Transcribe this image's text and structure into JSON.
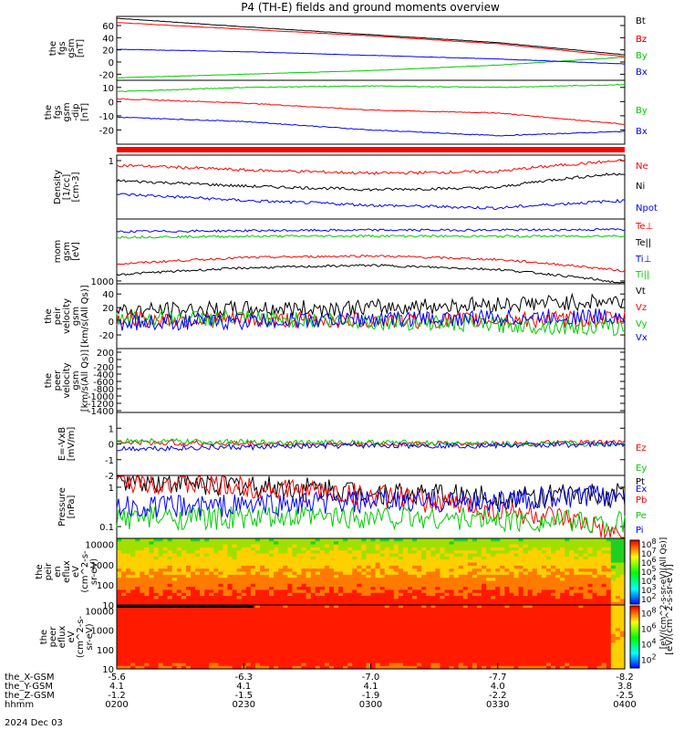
{
  "title": "P4 (TH-E) fields and ground moments overview",
  "chart_data": [
    {
      "type": "line",
      "panel": "fgs_gsm",
      "ylabel": [
        "the",
        "fgs",
        "gsm",
        "[nT]"
      ],
      "ylim": [
        -30,
        75
      ],
      "yticks": [
        -20,
        0,
        20,
        40,
        60
      ],
      "x_hours": [
        0,
        0.5,
        1,
        1.5,
        2
      ],
      "series": [
        {
          "name": "Bt",
          "color": "#000000",
          "values": [
            72,
            58,
            45,
            32,
            12
          ]
        },
        {
          "name": "Bz",
          "color": "#ff0000",
          "values": [
            65,
            54,
            43,
            30,
            9
          ]
        },
        {
          "name": "By",
          "color": "#00cc00",
          "values": [
            -26,
            -20,
            -14,
            -5,
            8
          ]
        },
        {
          "name": "Bx",
          "color": "#0000ff",
          "values": [
            21,
            17,
            11,
            5,
            -3
          ]
        }
      ],
      "legend": "right"
    },
    {
      "type": "line",
      "panel": "fgs_gsm_zoom",
      "ylabel": [
        "the",
        "fgs",
        "gsm",
        "-dip",
        "[nT]"
      ],
      "ylim": [
        -30,
        15
      ],
      "yticks": [
        -20,
        -10,
        0,
        10
      ],
      "x_hours": [
        0,
        0.5,
        1,
        1.5,
        2
      ],
      "series": [
        {
          "name": "Bz",
          "color": "#ff0000",
          "values": [
            2,
            -1,
            -6,
            -8,
            -16
          ]
        },
        {
          "name": "By",
          "color": "#00cc00",
          "values": [
            7,
            10,
            11,
            10,
            12
          ]
        },
        {
          "name": "Bx",
          "color": "#0000ff",
          "values": [
            -11,
            -14,
            -20,
            -24,
            -21
          ]
        }
      ],
      "legend": "right"
    },
    {
      "type": "line",
      "panel": "density",
      "ylabel": [
        "Density",
        "[1/cc]",
        "[cm-3]"
      ],
      "yscale": "log",
      "yticks": [
        1
      ],
      "series": [
        {
          "name": "Ne",
          "color": "#ff0000",
          "values": [
            0.75,
            0.55,
            0.45,
            0.5,
            1.0
          ]
        },
        {
          "name": "Ni",
          "color": "#000000",
          "values": [
            0.28,
            0.2,
            0.16,
            0.18,
            0.45
          ]
        },
        {
          "name": "Npot",
          "color": "#0000ff",
          "values": [
            0.12,
            0.08,
            0.06,
            0.05,
            0.08
          ]
        }
      ],
      "legend": "right"
    },
    {
      "type": "line",
      "panel": "temperature",
      "ylabel": [
        "mom",
        "gsm",
        "[eV]"
      ],
      "yscale": "log",
      "yticks": [
        1000
      ],
      "series": [
        {
          "name": "Te⊥",
          "color": "#ff0000",
          "values": [
            2000,
            2600,
            2800,
            2400,
            1500
          ]
        },
        {
          "name": "Te||",
          "color": "#000000",
          "values": [
            1300,
            1700,
            1900,
            1600,
            900
          ]
        },
        {
          "name": "Ti⊥",
          "color": "#0000ff",
          "values": [
            7500,
            7800,
            8000,
            8000,
            8200
          ]
        },
        {
          "name": "Ti||",
          "color": "#00cc00",
          "values": [
            6000,
            6200,
            6300,
            6200,
            6300
          ]
        }
      ],
      "legend": "right"
    },
    {
      "type": "line",
      "panel": "peir_velocity",
      "ylabel": [
        "the",
        "peir",
        "velocity",
        "gsm",
        "[km/s(All Qs)]"
      ],
      "ylim": [
        -40,
        55
      ],
      "yticks": [
        -20,
        0,
        20,
        40
      ],
      "series": [
        {
          "name": "Vt",
          "color": "#000000",
          "values": [
            15,
            18,
            20,
            25,
            30
          ]
        },
        {
          "name": "Vz",
          "color": "#ff0000",
          "values": [
            3,
            2,
            1,
            2,
            3
          ]
        },
        {
          "name": "Vy",
          "color": "#00cc00",
          "values": [
            5,
            4,
            0,
            -5,
            -10
          ]
        },
        {
          "name": "Vx",
          "color": "#0000ff",
          "values": [
            -2,
            0,
            3,
            5,
            8
          ]
        }
      ],
      "legend": "right"
    },
    {
      "type": "line",
      "panel": "peer_velocity",
      "ylabel": [
        "the",
        "peer",
        "velocity",
        "gsm",
        "[km/s(All Qs)]"
      ],
      "ylim": [
        -1450,
        300
      ],
      "yticks": [
        -1400,
        -1200,
        -1000,
        -800,
        -600,
        -400,
        -200,
        0,
        200
      ],
      "series": [
        {
          "name": "Vt",
          "color": "#000000",
          "values": []
        },
        {
          "name": "Vz",
          "color": "#ff0000",
          "values": []
        },
        {
          "name": "Vy",
          "color": "#00cc00",
          "values": []
        },
        {
          "name": "Vx",
          "color": "#0000ff",
          "values": []
        }
      ],
      "legend": "right"
    },
    {
      "type": "line",
      "panel": "efield",
      "ylabel": [
        "E=-VxB",
        "[mV/m]"
      ],
      "ylim": [
        -2,
        2
      ],
      "yticks": [
        -2,
        -1,
        0,
        1
      ],
      "series": [
        {
          "name": "Ez",
          "color": "#ff0000",
          "values": [
            0.1,
            0,
            0,
            0,
            0.1
          ]
        },
        {
          "name": "Ey",
          "color": "#00cc00",
          "values": [
            0.2,
            0.1,
            0.1,
            0,
            0
          ]
        },
        {
          "name": "Ex",
          "color": "#0000ff",
          "values": [
            -0.3,
            -0.2,
            -0.1,
            -0.1,
            0
          ]
        }
      ],
      "legend": "right"
    },
    {
      "type": "line",
      "panel": "pressure",
      "ylabel": [
        "Pressure",
        "[nPa]"
      ],
      "yscale": "log",
      "yticks": [
        0.1,
        1.0
      ],
      "series": [
        {
          "name": "Pt",
          "color": "#000000",
          "values": [
            1.6,
            1.1,
            0.75,
            0.55,
            0.65
          ]
        },
        {
          "name": "Pb",
          "color": "#ff0000",
          "values": [
            1.55,
            1.0,
            0.6,
            0.25,
            0.04
          ]
        },
        {
          "name": "Pe",
          "color": "#00cc00",
          "values": [
            0.17,
            0.16,
            0.18,
            0.15,
            0.12
          ]
        },
        {
          "name": "Pi",
          "color": "#0000ff",
          "values": [
            0.3,
            0.35,
            0.42,
            0.45,
            0.6
          ]
        }
      ],
      "legend": "right"
    },
    {
      "type": "heatmap",
      "panel": "peir_energy_flux",
      "ylabel": [
        "the",
        "peir",
        "en",
        "eflux",
        "eV",
        "(cm^2-s-",
        "sr-eV)"
      ],
      "yscale": "log",
      "yticks": [
        10,
        100,
        1000,
        10000
      ]
    },
    {
      "type": "heatmap",
      "panel": "peer_energy_flux",
      "ylabel": [
        "the",
        "peer",
        "eflux",
        "eV",
        "(cm^2-s-",
        "sr-eV)"
      ],
      "yscale": "log",
      "yticks": [
        10,
        100,
        1000,
        10000
      ]
    }
  ],
  "colorbar": {
    "label": "[eV/(cm^2-s-sr-eV)]",
    "label2": "[eV/(cm^2-s-sr-eV)(All Qs)]",
    "ticks1": [
      "10^2",
      "10^3",
      "10^4",
      "10^5",
      "10^6",
      "10^7",
      "10^8"
    ],
    "ticks2": [
      "10^2",
      "10^4",
      "10^6",
      "10^8"
    ]
  },
  "xaxis": {
    "rows": [
      {
        "label": "the_X-GSM",
        "values": [
          "-5.6",
          "-6.3",
          "-7.0",
          "-7.7",
          "-8.2"
        ]
      },
      {
        "label": "the_Y-GSM",
        "values": [
          "4.1",
          "4.1",
          "4.1",
          "4.0",
          "3.8"
        ]
      },
      {
        "label": "the_Z-GSM",
        "values": [
          "-1.2",
          "-1.5",
          "-1.9",
          "-2.2",
          "-2.5"
        ]
      },
      {
        "label": "hhmm",
        "values": [
          "0200",
          "0230",
          "0300",
          "0330",
          "0400"
        ]
      }
    ],
    "date": "2024 Dec 03"
  }
}
